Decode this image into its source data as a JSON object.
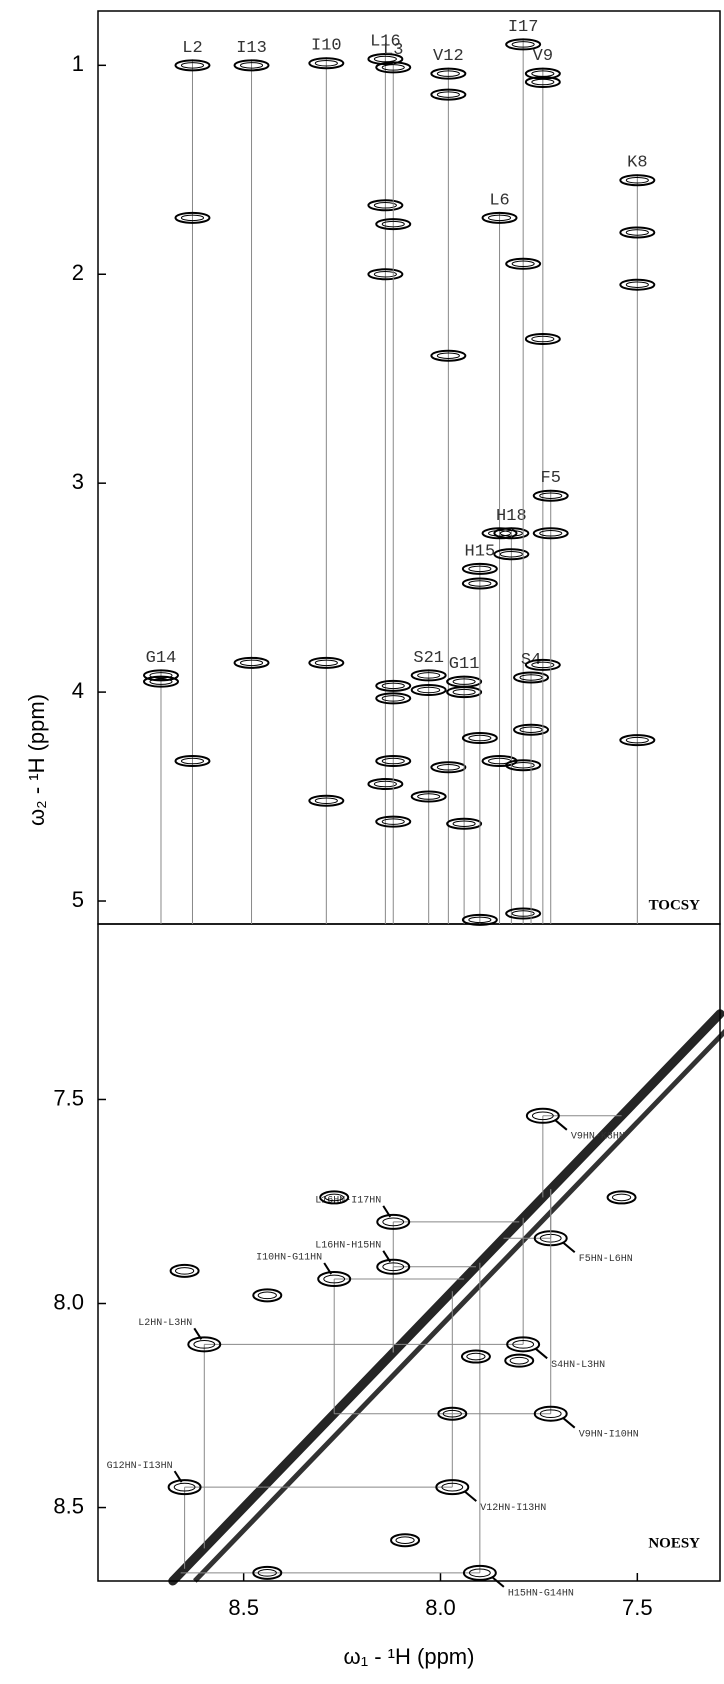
{
  "chart_data": [
    {
      "type": "tocsy",
      "panel_label": "TOCSY",
      "ylabel": "ω₂ - ¹H (ppm)",
      "xlim": [
        8.87,
        7.29
      ],
      "ylim": [
        0.74,
        5.11
      ],
      "yticks": [
        1,
        2,
        3,
        4,
        5
      ],
      "color": "#000000",
      "line_color": "#888888",
      "spin_systems": [
        {
          "name": "G14",
          "x": 8.71,
          "peaks": [
            3.92,
            3.95
          ]
        },
        {
          "name": "L2",
          "x": 8.63,
          "peaks": [
            1.0,
            1.73,
            4.33
          ]
        },
        {
          "name": "I13",
          "x": 8.48,
          "peaks": [
            1.0,
            3.86
          ]
        },
        {
          "name": "I10",
          "x": 8.29,
          "peaks": [
            0.99,
            3.86,
            4.52
          ]
        },
        {
          "name": "L16",
          "x": 8.14,
          "peaks": [
            0.97,
            1.67,
            2.0,
            4.44
          ]
        },
        {
          "name": "L3",
          "x": 8.12,
          "peaks": [
            1.01,
            1.76,
            3.97,
            4.03,
            4.33,
            4.62
          ]
        },
        {
          "name": "S21",
          "x": 8.03,
          "peaks": [
            3.92,
            3.99,
            4.5
          ]
        },
        {
          "name": "V12",
          "x": 7.98,
          "peaks": [
            1.04,
            1.14,
            2.39,
            4.36
          ]
        },
        {
          "name": "G11",
          "x": 7.94,
          "peaks": [
            3.95,
            4.0,
            4.63
          ]
        },
        {
          "name": "H15",
          "x": 7.9,
          "peaks": [
            3.41,
            3.48,
            4.22,
            5.09
          ]
        },
        {
          "name": "L6",
          "x": 7.85,
          "peaks": [
            1.73,
            3.24,
            4.33
          ]
        },
        {
          "name": "H18",
          "x": 7.82,
          "peaks": [
            3.24,
            3.34
          ]
        },
        {
          "name": "I17",
          "x": 7.79,
          "peaks": [
            0.9,
            1.95,
            4.35,
            5.06
          ]
        },
        {
          "name": "S4",
          "x": 7.77,
          "peaks": [
            3.93,
            4.18
          ]
        },
        {
          "name": "V9",
          "x": 7.74,
          "peaks": [
            1.04,
            1.08,
            2.31,
            3.87
          ]
        },
        {
          "name": "F5",
          "x": 7.72,
          "peaks": [
            3.06,
            3.24
          ]
        },
        {
          "name": "K8",
          "x": 7.5,
          "peaks": [
            1.55,
            1.8,
            2.05,
            4.23
          ]
        }
      ]
    },
    {
      "type": "noesy",
      "panel_label": "NOESY",
      "xlabel": "ω₁ - ¹H (ppm)",
      "xlim": [
        8.87,
        7.29
      ],
      "ylim": [
        7.07,
        8.68
      ],
      "xticks": [
        8.5,
        {
          "value": 8,
          "label": "8.0"
        },
        7.5
      ],
      "yticks": [
        7.5,
        {
          "value": 8,
          "label": "8.0"
        },
        8.5
      ],
      "color": "#000000",
      "line_color": "#888888",
      "cross_peaks": [
        {
          "name": "V9HN-K8HN",
          "x": 7.74,
          "y": 7.54
        },
        {
          "name": "L16HN-I17HN",
          "x": 8.12,
          "y": 7.8
        },
        {
          "name": "L16HN-H15HN",
          "x": 8.12,
          "y": 7.91
        },
        {
          "name": "I10HN-G11HN",
          "x": 8.27,
          "y": 7.94
        },
        {
          "name": "F5HN-L6HN",
          "x": 7.72,
          "y": 7.84
        },
        {
          "name": "L2HN-L3HN",
          "x": 8.6,
          "y": 8.1
        },
        {
          "name": "S4HN-L3HN",
          "x": 7.79,
          "y": 8.1
        },
        {
          "name": "V9HN-I10HN",
          "x": 7.72,
          "y": 8.27
        },
        {
          "name": "G12HN-I13HN",
          "x": 8.65,
          "y": 8.45
        },
        {
          "name": "V12HN-I13HN",
          "x": 7.97,
          "y": 8.45
        },
        {
          "name": "H15HN-G14HN",
          "x": 7.9,
          "y": 8.66
        }
      ],
      "other_peaks": {
        "x": [
          8.65,
          8.44,
          8.27,
          7.54,
          7.91,
          7.8,
          7.97,
          8.44,
          8.09
        ],
        "y": [
          7.92,
          7.98,
          7.74,
          7.74,
          8.13,
          8.14,
          8.27,
          8.66,
          8.58
        ]
      }
    }
  ]
}
